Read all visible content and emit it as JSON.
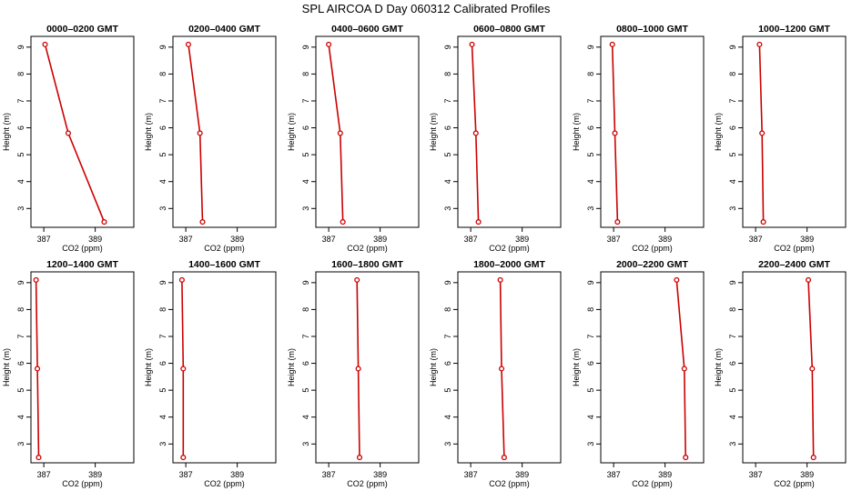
{
  "title": "SPL AIRCOA D  Day 060312  Calibrated Profiles",
  "chart_data": {
    "type": "line",
    "layout": "small-multiples 2x6",
    "xlabel": "CO2 (ppm)",
    "ylabel": "Height (m)",
    "xlim": [
      386.5,
      390.5
    ],
    "ylim": [
      2.3,
      9.4
    ],
    "xticks": [
      387,
      389
    ],
    "yticks": [
      3,
      4,
      5,
      6,
      7,
      8,
      9
    ],
    "grid": false,
    "line_color": "#cc0000",
    "marker": "open-circle",
    "panels": [
      {
        "title": "0000–0200 GMT",
        "points": [
          {
            "co2": 387.05,
            "height": 9.1
          },
          {
            "co2": 387.95,
            "height": 5.8
          },
          {
            "co2": 389.35,
            "height": 2.5
          }
        ]
      },
      {
        "title": "0200–0400 GMT",
        "points": [
          {
            "co2": 387.1,
            "height": 9.1
          },
          {
            "co2": 387.55,
            "height": 5.8
          },
          {
            "co2": 387.65,
            "height": 2.5
          }
        ]
      },
      {
        "title": "0400–0600 GMT",
        "points": [
          {
            "co2": 387.0,
            "height": 9.1
          },
          {
            "co2": 387.45,
            "height": 5.8
          },
          {
            "co2": 387.55,
            "height": 2.5
          }
        ]
      },
      {
        "title": "0600–0800 GMT",
        "points": [
          {
            "co2": 387.05,
            "height": 9.1
          },
          {
            "co2": 387.2,
            "height": 5.8
          },
          {
            "co2": 387.3,
            "height": 2.5
          }
        ]
      },
      {
        "title": "0800–1000 GMT",
        "points": [
          {
            "co2": 386.95,
            "height": 9.1
          },
          {
            "co2": 387.05,
            "height": 5.8
          },
          {
            "co2": 387.15,
            "height": 2.5
          }
        ]
      },
      {
        "title": "1000–1200 GMT",
        "points": [
          {
            "co2": 387.15,
            "height": 9.1
          },
          {
            "co2": 387.25,
            "height": 5.8
          },
          {
            "co2": 387.3,
            "height": 2.5
          }
        ]
      },
      {
        "title": "1200–1400 GMT",
        "points": [
          {
            "co2": 386.7,
            "height": 9.1
          },
          {
            "co2": 386.75,
            "height": 5.8
          },
          {
            "co2": 386.8,
            "height": 2.5
          }
        ]
      },
      {
        "title": "1400–1600 GMT",
        "points": [
          {
            "co2": 386.85,
            "height": 9.1
          },
          {
            "co2": 386.9,
            "height": 5.8
          },
          {
            "co2": 386.9,
            "height": 2.5
          }
        ]
      },
      {
        "title": "1600–1800 GMT",
        "points": [
          {
            "co2": 388.1,
            "height": 9.1
          },
          {
            "co2": 388.15,
            "height": 5.8
          },
          {
            "co2": 388.2,
            "height": 2.5
          }
        ]
      },
      {
        "title": "1800–2000 GMT",
        "points": [
          {
            "co2": 388.15,
            "height": 9.1
          },
          {
            "co2": 388.2,
            "height": 5.8
          },
          {
            "co2": 388.3,
            "height": 2.5
          }
        ]
      },
      {
        "title": "2000–2200 GMT",
        "points": [
          {
            "co2": 389.45,
            "height": 9.1
          },
          {
            "co2": 389.75,
            "height": 5.8
          },
          {
            "co2": 389.8,
            "height": 2.5
          }
        ]
      },
      {
        "title": "2200–2400 GMT",
        "points": [
          {
            "co2": 389.05,
            "height": 9.1
          },
          {
            "co2": 389.2,
            "height": 5.8
          },
          {
            "co2": 389.25,
            "height": 2.5
          }
        ]
      }
    ]
  }
}
